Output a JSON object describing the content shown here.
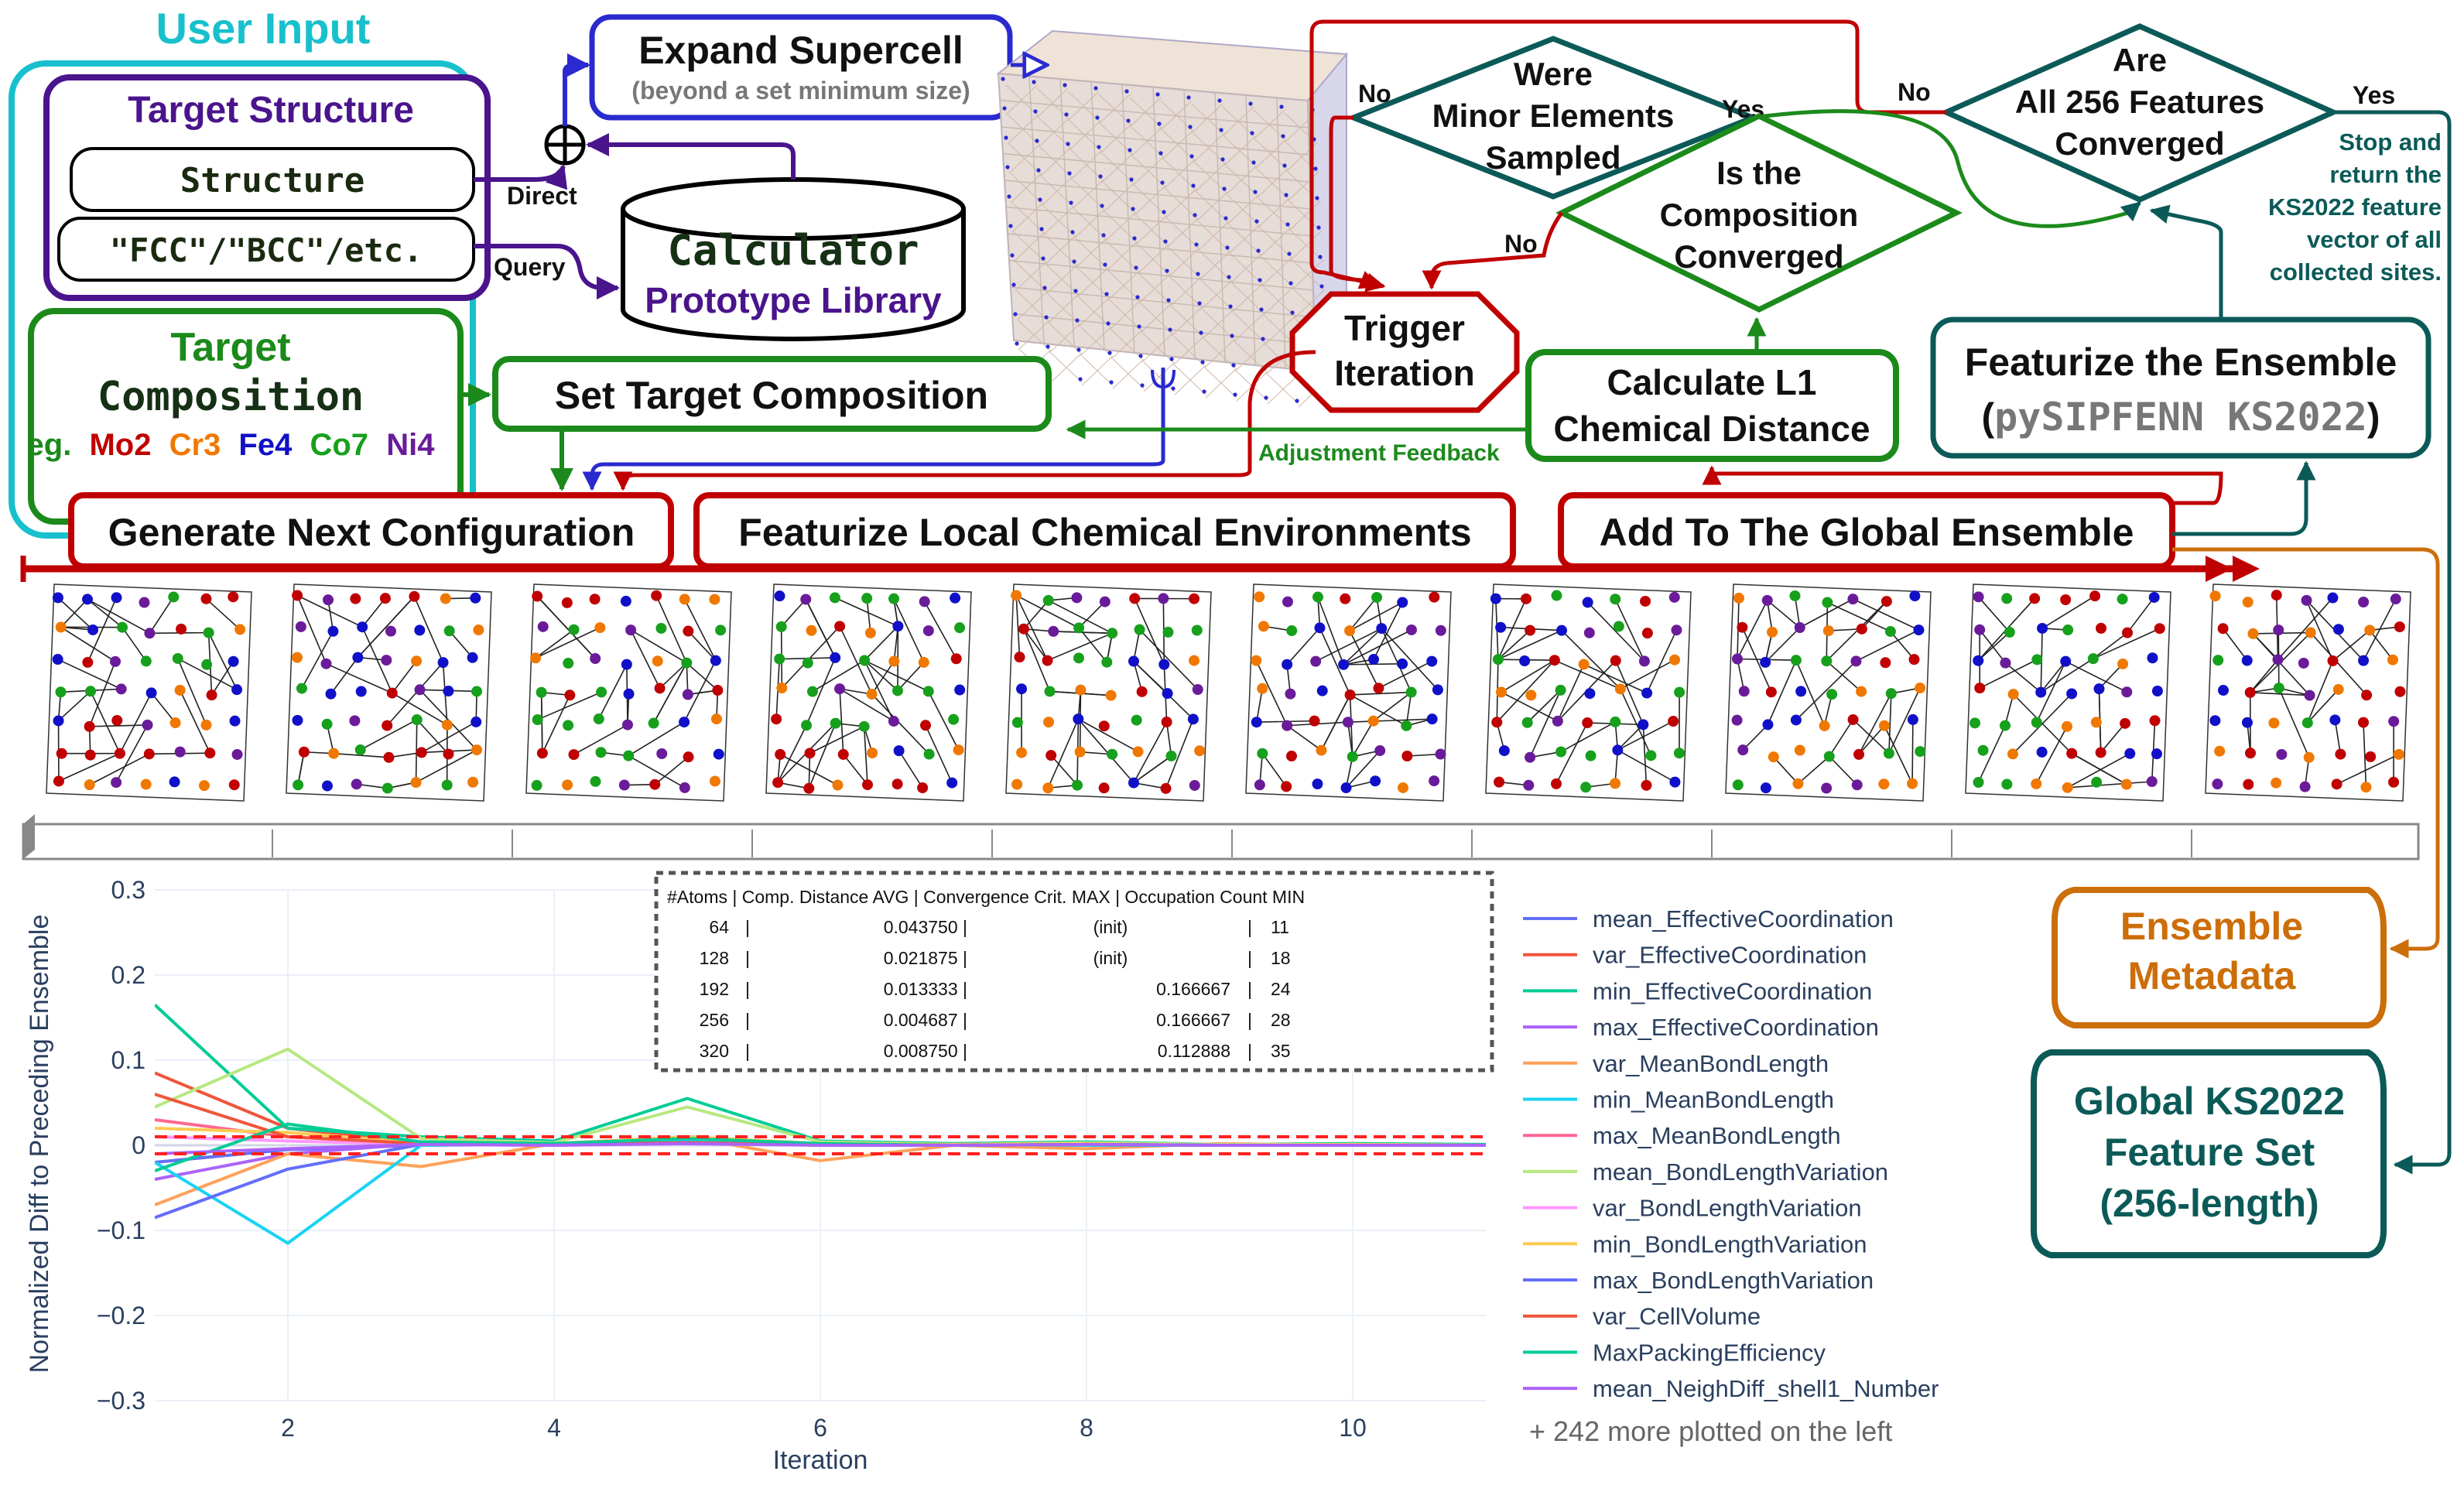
{
  "user_input": {
    "title": "User Input",
    "target_structure": "Target Structure",
    "structure_field": "Structure",
    "prototype_field": "\"FCC\"/\"BCC\"/etc.",
    "target_composition_1": "Target",
    "target_composition_2": "Composition",
    "composition_example": {
      "prefix": "eg.",
      "elements": [
        {
          "label": "Mo2",
          "color": "#c00000"
        },
        {
          "label": "Cr3",
          "color": "#f07800"
        },
        {
          "label": "Fe4",
          "color": "#1010c8"
        },
        {
          "label": "Co7",
          "color": "#16a01c"
        },
        {
          "label": "Ni4",
          "color": "#6a1b9a"
        }
      ]
    }
  },
  "calculator": {
    "title": "Calculator",
    "subtitle": "Prototype Library"
  },
  "arrow_labels": {
    "direct": "Direct",
    "query": "Query",
    "adjustment_feedback": "Adjustment Feedback"
  },
  "expand_supercell": {
    "title": "Expand Supercell",
    "subtitle": "(beyond a set minimum size)"
  },
  "decisions": {
    "minor_elements": {
      "line1": "Were",
      "line2": "Minor Elements",
      "line3": "Sampled",
      "no": "No",
      "yes": "Yes"
    },
    "composition": {
      "line1": "Is the",
      "line2": "Composition",
      "line3": "Converged",
      "no": "No"
    },
    "features": {
      "line1": "Are",
      "line2": "All 256 Features",
      "line3": "Converged",
      "no": "No",
      "yes": "Yes"
    }
  },
  "trigger": {
    "line1": "Trigger",
    "line2": "Iteration"
  },
  "set_target_composition": "Set Target Composition",
  "calculate_l1": {
    "line1": "Calculate L1",
    "line2": "Chemical Distance"
  },
  "stop_note": [
    "Stop and",
    "return the",
    "KS2022 feature",
    "vector of all",
    "collected sites."
  ],
  "featurize_ensemble": {
    "line1": "Featurize the Ensemble",
    "paren_open": "(",
    "code": "pySIPFENN KS2022",
    "paren_close": ")"
  },
  "pipeline": {
    "generate": "Generate Next Configuration",
    "featurize_local": "Featurize Local Chemical Environments",
    "add_global": "Add To The Global Ensemble"
  },
  "ensemble_metadata": {
    "line1": "Ensemble",
    "line2": "Metadata"
  },
  "global_feature_set": {
    "line1": "Global KS2022",
    "line2": "Feature Set",
    "line3": "(256-length)"
  },
  "colors": {
    "user_input": "#17c0cc",
    "structure": "#4a148c",
    "composition": "#1b8a1b",
    "supercell": "#2a2ad0",
    "loop": "#c00000",
    "decision": "#0b5a58",
    "metadata": "#cc6e0a",
    "legend_text": "#2a3f5f"
  },
  "structure_panels": {
    "count": 10
  },
  "chart_data": {
    "type": "line",
    "xlabel": "Iteration",
    "ylabel": "Normalized Diff to Preceding Ensemble",
    "xlim": [
      1,
      11
    ],
    "ylim": [
      -0.3,
      0.3
    ],
    "x_ticks": [
      2,
      4,
      6,
      8,
      10
    ],
    "y_ticks": [
      0.3,
      0.2,
      0.1,
      0,
      -0.1,
      -0.2,
      -0.3
    ],
    "y_tick_labels": [
      "0.3",
      "0.2",
      "0.1",
      "0",
      "−0.1",
      "−0.2",
      "−0.3"
    ],
    "thresholds": [
      0.01,
      -0.01
    ],
    "threshold_color": "#ff2020",
    "legend_placement": "right",
    "series": [
      {
        "name": "mean_EffectiveCoordination",
        "color": "#636efa",
        "x": [
          1,
          2,
          3,
          4,
          5,
          6,
          7,
          8,
          9,
          10,
          11
        ],
        "values": [
          -0.02,
          -0.005,
          0.0,
          0.001,
          0.002,
          0.001,
          0.0,
          0.001,
          0.0,
          0.0,
          0.0
        ]
      },
      {
        "name": "var_EffectiveCoordination",
        "color": "#ef553b",
        "x": [
          1,
          2,
          3,
          4,
          5,
          6,
          7,
          8,
          9,
          10,
          11
        ],
        "values": [
          0.085,
          0.02,
          0.003,
          0.002,
          0.004,
          0.002,
          0.001,
          0.002,
          0.0,
          0.001,
          0.0
        ]
      },
      {
        "name": "min_EffectiveCoordination",
        "color": "#00cc96",
        "x": [
          1,
          2,
          3,
          4,
          5,
          6,
          7,
          8,
          9,
          10,
          11
        ],
        "values": [
          0.165,
          0.02,
          0.01,
          0.005,
          0.055,
          0.005,
          0.002,
          0.004,
          0.001,
          0.002,
          0.001
        ]
      },
      {
        "name": "max_EffectiveCoordination",
        "color": "#ab63fa",
        "x": [
          1,
          2,
          3,
          4,
          5,
          6,
          7,
          8,
          9,
          10,
          11
        ],
        "values": [
          -0.04,
          -0.01,
          0.002,
          0.001,
          0.003,
          0.001,
          0.0,
          0.002,
          0.0,
          0.001,
          0.0
        ]
      },
      {
        "name": "var_MeanBondLength",
        "color": "#ffa15a",
        "x": [
          1,
          2,
          3,
          4,
          5,
          6,
          7,
          8,
          9,
          10,
          11
        ],
        "values": [
          -0.07,
          -0.01,
          -0.025,
          0.002,
          0.01,
          -0.018,
          0.0,
          -0.004,
          0.002,
          0.0,
          0.0
        ]
      },
      {
        "name": "min_MeanBondLength",
        "color": "#19d3f3",
        "x": [
          1,
          2,
          3,
          4,
          5,
          6,
          7,
          8,
          9,
          10,
          11
        ],
        "values": [
          -0.02,
          -0.115,
          0.0,
          0.002,
          0.005,
          0.0,
          0.001,
          0.0,
          0.0,
          0.001,
          0.0
        ]
      },
      {
        "name": "max_MeanBondLength",
        "color": "#ff6692",
        "x": [
          1,
          2,
          3,
          4,
          5,
          6,
          7,
          8,
          9,
          10,
          11
        ],
        "values": [
          0.03,
          0.01,
          0.002,
          0.001,
          0.002,
          0.001,
          0.0,
          0.001,
          0.0,
          0.0,
          0.0
        ]
      },
      {
        "name": "mean_BondLengthVariation",
        "color": "#b6e880",
        "x": [
          1,
          2,
          3,
          4,
          5,
          6,
          7,
          8,
          9,
          10,
          11
        ],
        "values": [
          0.045,
          0.113,
          0.008,
          0.003,
          0.045,
          0.004,
          0.001,
          0.003,
          0.001,
          0.001,
          0.0
        ]
      },
      {
        "name": "var_BondLengthVariation",
        "color": "#ff97ff",
        "x": [
          1,
          2,
          3,
          4,
          5,
          6,
          7,
          8,
          9,
          10,
          11
        ],
        "values": [
          0.01,
          0.005,
          0.001,
          0.0,
          0.002,
          0.001,
          0.0,
          0.001,
          0.0,
          0.0,
          0.0
        ]
      },
      {
        "name": "min_BondLengthVariation",
        "color": "#fecb52",
        "x": [
          1,
          2,
          3,
          4,
          5,
          6,
          7,
          8,
          9,
          10,
          11
        ],
        "values": [
          0.02,
          0.015,
          0.003,
          0.001,
          0.01,
          0.002,
          0.001,
          0.002,
          0.0,
          0.001,
          0.0
        ]
      },
      {
        "name": "max_BondLengthVariation",
        "color": "#636efa",
        "x": [
          1,
          2,
          3,
          4,
          5,
          6,
          7,
          8,
          9,
          10,
          11
        ],
        "values": [
          -0.085,
          -0.028,
          0.001,
          0.001,
          0.003,
          0.001,
          0.0,
          0.001,
          0.0,
          0.0,
          0.0
        ]
      },
      {
        "name": "var_CellVolume",
        "color": "#ef553b",
        "x": [
          1,
          2,
          3,
          4,
          5,
          6,
          7,
          8,
          9,
          10,
          11
        ],
        "values": [
          0.06,
          0.01,
          0.002,
          0.001,
          0.003,
          0.001,
          0.0,
          0.001,
          0.0,
          0.0,
          0.0
        ]
      },
      {
        "name": "MaxPackingEfficiency",
        "color": "#00cc96",
        "x": [
          1,
          2,
          3,
          4,
          5,
          6,
          7,
          8,
          9,
          10,
          11
        ],
        "values": [
          -0.03,
          0.025,
          0.004,
          0.002,
          0.008,
          0.002,
          0.0,
          0.001,
          0.0,
          0.0,
          0.0
        ]
      },
      {
        "name": "mean_NeighDiff_shell1_Number",
        "color": "#ab63fa",
        "x": [
          1,
          2,
          3,
          4,
          5,
          6,
          7,
          8,
          9,
          10,
          11
        ],
        "values": [
          -0.01,
          -0.004,
          0.001,
          0.0,
          0.002,
          0.0,
          0.0,
          0.001,
          0.0,
          0.0,
          0.0
        ]
      }
    ],
    "more_note": "+ 242 more plotted on the left",
    "inset_table": {
      "headers": [
        "#Atoms",
        "Comp. Distance AVG",
        "Convergence Crit. MAX",
        "Occupation Count MIN"
      ],
      "rows": [
        [
          "64",
          "0.043750",
          "(init)",
          "11"
        ],
        [
          "128",
          "0.021875",
          "(init)",
          "18"
        ],
        [
          "192",
          "0.013333",
          "0.166667",
          "24"
        ],
        [
          "256",
          "0.004687",
          "0.166667",
          "28"
        ],
        [
          "320",
          "0.008750",
          "0.112888",
          "35"
        ]
      ]
    }
  }
}
